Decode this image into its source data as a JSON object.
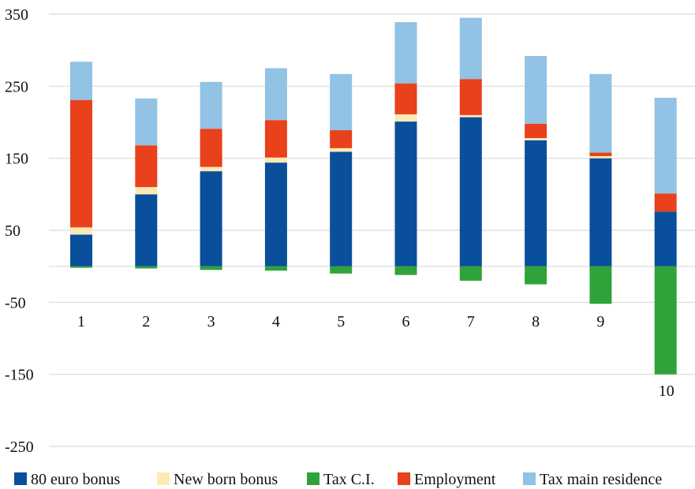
{
  "chart_data": {
    "type": "bar",
    "stacked": true,
    "categories": [
      "1",
      "2",
      "3",
      "4",
      "5",
      "6",
      "7",
      "8",
      "9",
      "10"
    ],
    "ylim": [
      -250,
      350
    ],
    "yticks": [
      "350",
      "250",
      "150",
      "50",
      "-50",
      "-150",
      "-250"
    ],
    "ytick_values": [
      350,
      250,
      150,
      50,
      -50,
      -150,
      -250
    ],
    "grid": true,
    "legend_position": "bottom",
    "series": [
      {
        "name": "80 euro bonus",
        "color": "#0a4f9c",
        "values": [
          44,
          100,
          132,
          144,
          159,
          201,
          207,
          175,
          150,
          76
        ]
      },
      {
        "name": "New born bonus",
        "color": "#fde9b4",
        "values": [
          10,
          10,
          6,
          7,
          5,
          10,
          3,
          3,
          3,
          0
        ]
      },
      {
        "name": "Tax C.I.",
        "color": "#2fa33a",
        "values": [
          -2,
          -3,
          -5,
          -6,
          -10,
          -12,
          -20,
          -25,
          -52,
          -150
        ]
      },
      {
        "name": "Employment",
        "color": "#e8411c",
        "values": [
          177,
          58,
          53,
          52,
          25,
          43,
          50,
          20,
          5,
          25
        ]
      },
      {
        "name": "Tax main residence",
        "color": "#92c2e4",
        "values": [
          53,
          65,
          65,
          72,
          78,
          85,
          85,
          94,
          109,
          133
        ]
      }
    ]
  }
}
